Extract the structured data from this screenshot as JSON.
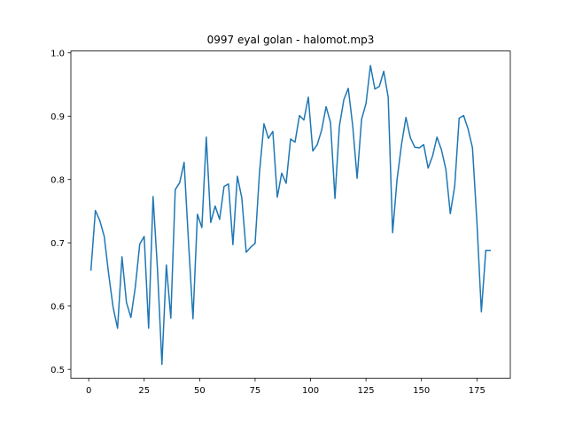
{
  "chart_data": {
    "type": "line",
    "title": "0997 eyal golan - halomot.mp3",
    "xlabel": "",
    "ylabel": "",
    "xlim": [
      -8.05,
      190.05
    ],
    "ylim": [
      0.486,
      1.003
    ],
    "xticks": [
      0,
      25,
      50,
      75,
      100,
      125,
      150,
      175
    ],
    "xtick_labels": [
      "0",
      "25",
      "50",
      "75",
      "100",
      "125",
      "150",
      "175"
    ],
    "yticks": [
      0.5,
      0.6,
      0.7,
      0.8,
      0.9,
      1.0
    ],
    "ytick_labels": [
      "0.5",
      "0.6",
      "0.7",
      "0.8",
      "0.9",
      "1.0"
    ],
    "grid": false,
    "series": [
      {
        "name": "",
        "color": "#1f77b4",
        "x": [
          1,
          3,
          5,
          7,
          9,
          11,
          13,
          15,
          17,
          19,
          21,
          23,
          25,
          27,
          29,
          31,
          33,
          35,
          37,
          39,
          41,
          43,
          45,
          47,
          49,
          51,
          53,
          55,
          57,
          59,
          61,
          63,
          65,
          67,
          69,
          71,
          73,
          75,
          77,
          79,
          81,
          83,
          85,
          87,
          89,
          91,
          93,
          95,
          97,
          99,
          101,
          103,
          105,
          107,
          109,
          111,
          113,
          115,
          117,
          119,
          121,
          123,
          125,
          127,
          129,
          131,
          133,
          135,
          137,
          139,
          141,
          143,
          145,
          147,
          149,
          151,
          153,
          155,
          157,
          159,
          161,
          163,
          165,
          167,
          169,
          171,
          173,
          175,
          177,
          179,
          181
        ],
        "y": [
          0.657,
          0.751,
          0.735,
          0.71,
          0.65,
          0.598,
          0.565,
          0.678,
          0.606,
          0.582,
          0.63,
          0.698,
          0.71,
          0.565,
          0.773,
          0.658,
          0.508,
          0.665,
          0.581,
          0.784,
          0.795,
          0.827,
          0.7,
          0.58,
          0.745,
          0.724,
          0.867,
          0.732,
          0.758,
          0.737,
          0.789,
          0.793,
          0.697,
          0.805,
          0.771,
          0.685,
          0.693,
          0.699,
          0.812,
          0.888,
          0.865,
          0.876,
          0.772,
          0.81,
          0.794,
          0.864,
          0.859,
          0.901,
          0.894,
          0.93,
          0.845,
          0.855,
          0.878,
          0.915,
          0.89,
          0.77,
          0.884,
          0.926,
          0.944,
          0.885,
          0.802,
          0.895,
          0.92,
          0.98,
          0.943,
          0.947,
          0.971,
          0.93,
          0.716,
          0.8,
          0.855,
          0.898,
          0.866,
          0.851,
          0.85,
          0.855,
          0.818,
          0.837,
          0.867,
          0.847,
          0.816,
          0.746,
          0.79,
          0.897,
          0.901,
          0.88,
          0.85,
          0.733,
          0.591,
          0.688,
          0.688
        ]
      }
    ]
  }
}
